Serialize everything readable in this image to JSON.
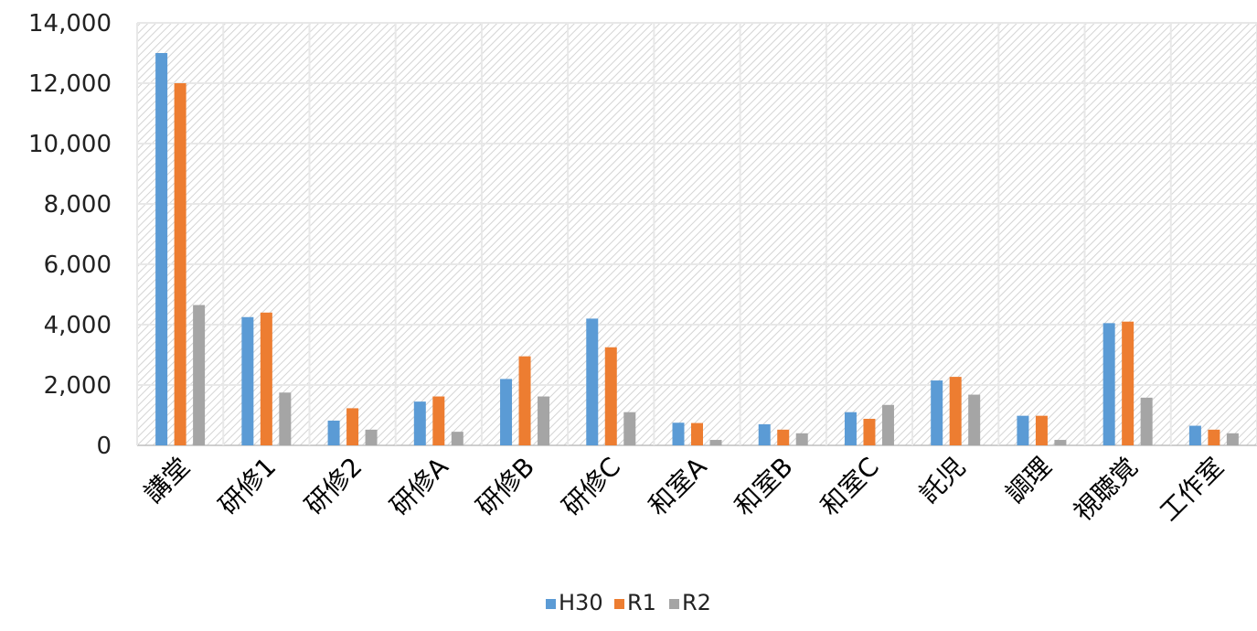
{
  "chart_data": {
    "type": "bar",
    "categories": [
      "講堂",
      "研修1",
      "研修2",
      "研修A",
      "研修B",
      "研修C",
      "和室A",
      "和室B",
      "和室C",
      "託児",
      "調理",
      "視聴覚",
      "工作室"
    ],
    "series": [
      {
        "name": "H30",
        "color": "#5b9bd5",
        "values": [
          13000,
          4250,
          820,
          1450,
          2200,
          4200,
          750,
          700,
          1100,
          2150,
          980,
          4050,
          650
        ]
      },
      {
        "name": "R1",
        "color": "#ed7d31",
        "values": [
          12000,
          4400,
          1230,
          1620,
          2950,
          3250,
          740,
          520,
          880,
          2270,
          980,
          4100,
          520
        ]
      },
      {
        "name": "R2",
        "color": "#a5a5a5",
        "values": [
          4650,
          1750,
          520,
          450,
          1620,
          1100,
          180,
          400,
          1340,
          1680,
          180,
          1580,
          400
        ]
      }
    ],
    "y_ticks": [
      "0",
      "2,000",
      "4,000",
      "6,000",
      "8,000",
      "10,000",
      "12,000",
      "14,000"
    ],
    "ylim": [
      0,
      14000
    ],
    "grid": true,
    "legend_position": "bottom"
  }
}
